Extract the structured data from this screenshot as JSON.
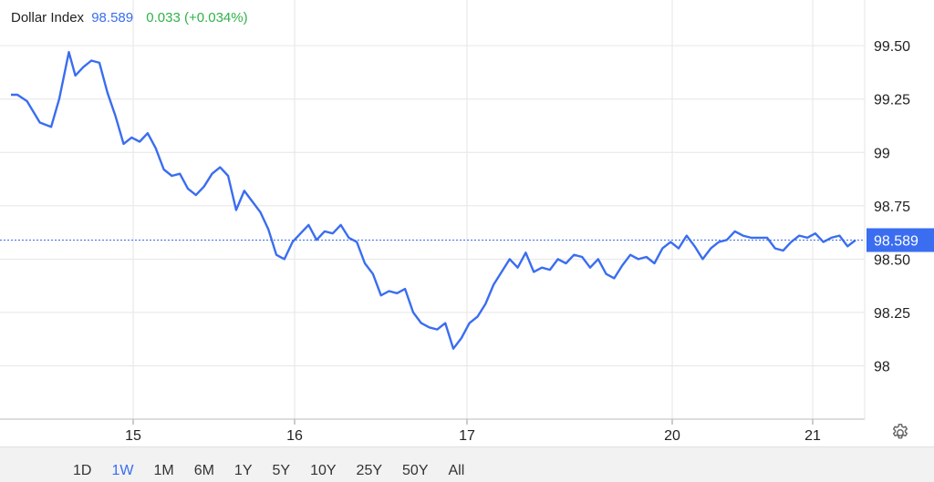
{
  "header": {
    "name": "Dollar Index",
    "last": "98.589",
    "change": "0.033 (+0.034%)"
  },
  "ranges": [
    "1D",
    "1W",
    "1M",
    "6M",
    "1Y",
    "5Y",
    "10Y",
    "25Y",
    "50Y",
    "All"
  ],
  "active_range": "1W",
  "icons": {
    "settings": "gear-icon"
  },
  "colors": {
    "line": "#3a6df0",
    "positive": "#2fb24a",
    "badge": "#3a6df0"
  },
  "chart_data": {
    "type": "line",
    "title": "Dollar Index",
    "y_ticks": [
      "99.50",
      "99.25",
      "99",
      "98.75",
      "98.50",
      "98.25",
      "98"
    ],
    "x_ticks": [
      "15",
      "16",
      "17",
      "20",
      "21"
    ],
    "ylim": [
      97.75,
      99.68
    ],
    "last_value": 98.589,
    "last_label": "98.589",
    "grid": true,
    "series": [
      {
        "x": [
          0.0,
          0.04,
          0.1,
          0.18,
          0.25,
          0.3,
          0.36,
          0.4,
          0.45,
          0.5,
          0.55,
          0.6,
          0.65,
          0.7,
          0.75,
          0.8,
          0.85,
          0.9,
          0.95,
          1.0,
          1.05,
          1.1,
          1.15,
          1.2,
          1.25,
          1.3,
          1.35,
          1.4,
          1.45,
          1.5,
          1.55,
          1.6,
          1.65,
          1.7,
          1.75,
          1.8,
          1.85,
          1.9,
          1.95,
          2.0,
          2.05,
          2.1,
          2.15,
          2.2,
          2.25,
          2.3,
          2.35,
          2.4,
          2.45,
          2.5,
          2.55,
          2.6,
          2.65,
          2.7,
          2.75,
          2.8,
          2.85,
          2.9,
          2.95,
          3.0,
          3.05,
          3.1,
          3.15,
          3.2,
          3.25,
          3.3,
          3.35,
          3.4,
          3.45,
          3.5,
          3.55,
          3.6,
          3.65,
          3.7,
          3.75,
          3.8,
          3.85,
          3.9,
          3.95,
          4.0,
          4.05,
          4.1,
          4.15,
          4.2,
          4.25,
          4.3,
          4.35,
          4.4,
          4.45,
          4.5,
          4.55,
          4.6,
          4.65,
          4.7,
          4.75,
          4.8,
          4.85,
          4.9,
          4.95,
          5.0,
          5.05,
          5.1,
          5.15,
          5.2,
          5.25
        ],
        "y": [
          99.27,
          99.27,
          99.24,
          99.14,
          99.12,
          99.25,
          99.47,
          99.36,
          99.4,
          99.43,
          99.42,
          99.28,
          99.17,
          99.04,
          99.07,
          99.05,
          99.09,
          99.02,
          98.92,
          98.89,
          98.9,
          98.83,
          98.8,
          98.84,
          98.9,
          98.93,
          98.89,
          98.73,
          98.82,
          98.77,
          98.72,
          98.64,
          98.52,
          98.5,
          98.58,
          98.62,
          98.66,
          98.59,
          98.63,
          98.62,
          98.66,
          98.6,
          98.58,
          98.48,
          98.43,
          98.33,
          98.35,
          98.34,
          98.36,
          98.25,
          98.2,
          98.18,
          98.17,
          98.2,
          98.08,
          98.13,
          98.2,
          98.23,
          98.29,
          98.38,
          98.44,
          98.5,
          98.46,
          98.53,
          98.44,
          98.46,
          98.45,
          98.5,
          98.48,
          98.52,
          98.51,
          98.46,
          98.5,
          98.43,
          98.41,
          98.47,
          98.52,
          98.5,
          98.51,
          98.48,
          98.55,
          98.58,
          98.55,
          98.61,
          98.56,
          98.5,
          98.55,
          98.58,
          98.59,
          98.63,
          98.61,
          98.6,
          98.6,
          98.6,
          98.55,
          98.54,
          98.58,
          98.61,
          98.6,
          98.62,
          98.58,
          98.6,
          98.61,
          98.56,
          98.589
        ]
      }
    ]
  }
}
